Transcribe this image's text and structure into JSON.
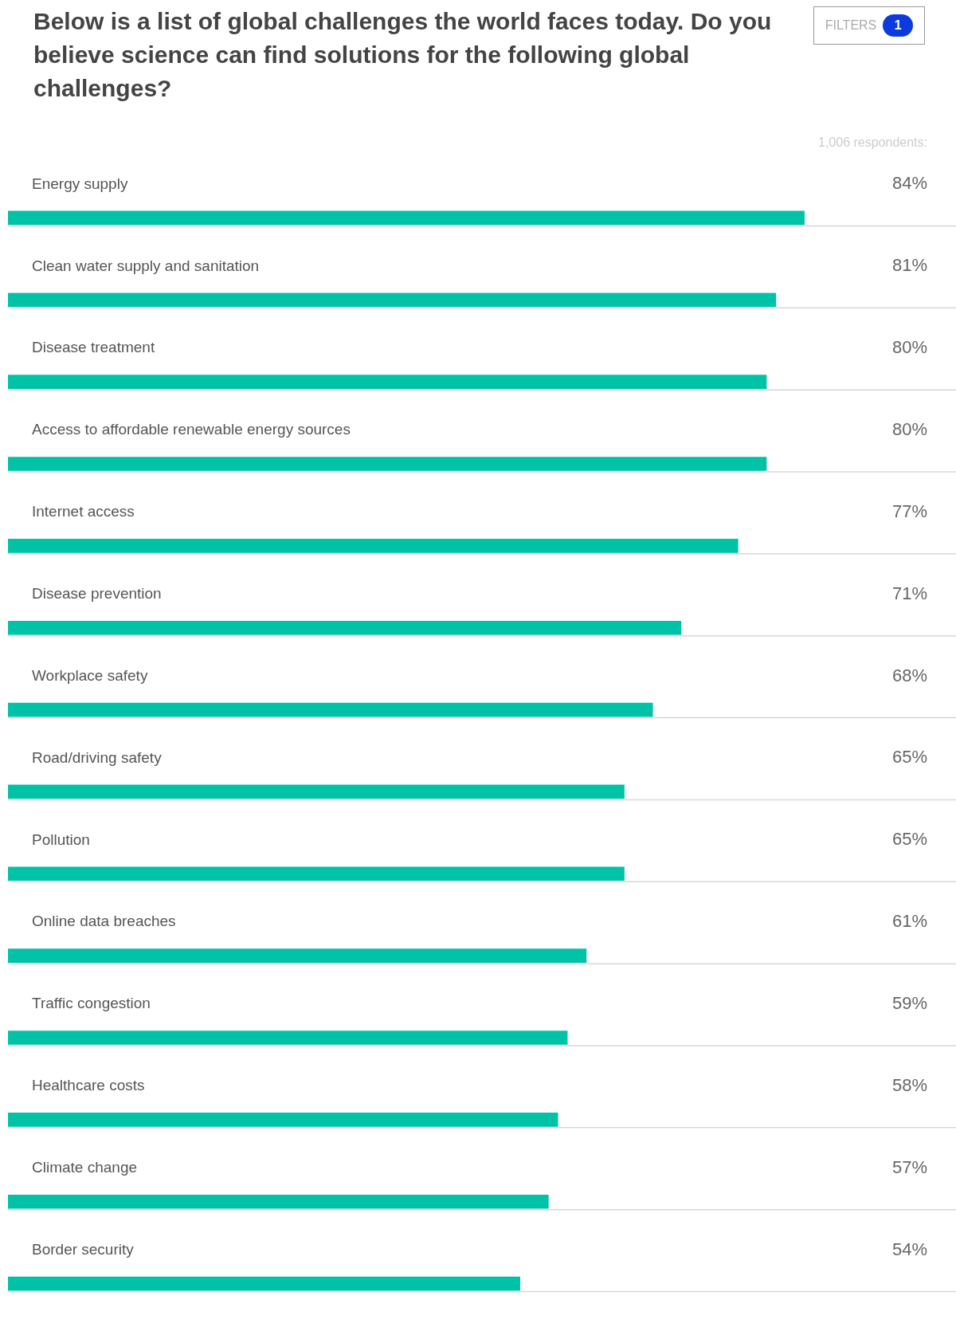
{
  "chart_data": {
    "type": "bar",
    "orientation": "horizontal",
    "title": "Below is a list of global challenges the world faces today. Do you believe science can find solutions for the following global challenges?",
    "annotations": [
      "FILTERS",
      "1",
      "1,006 respondents:"
    ],
    "categories": [
      "Energy supply",
      "Clean water supply and sanitation",
      "Disease treatment",
      "Access to affordable renewable energy sources",
      "Internet access",
      "Disease prevention",
      "Workplace safety",
      "Road/driving safety",
      "Pollution",
      "Online data breaches",
      "Traffic congestion",
      "Healthcare costs",
      "Climate change",
      "Border security"
    ],
    "values": [
      84,
      81,
      80,
      80,
      77,
      71,
      68,
      65,
      65,
      61,
      59,
      58,
      57,
      54
    ],
    "value_labels": [
      "84%",
      "81%",
      "80%",
      "80%",
      "77%",
      "71%",
      "68%",
      "65%",
      "65%",
      "61%",
      "59%",
      "58%",
      "57%",
      "54%"
    ],
    "color": "#00c2a6",
    "xlim": [
      0,
      100
    ],
    "tick_labels": false,
    "grid": "y",
    "legend": false
  }
}
